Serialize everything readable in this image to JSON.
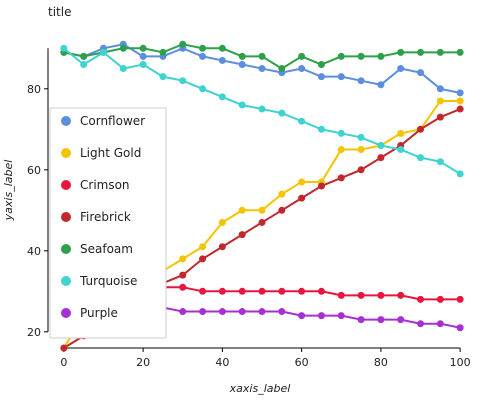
{
  "chart_data": {
    "type": "line",
    "title": "title",
    "xlabel": "xaxis_label",
    "ylabel": "yaxis_label",
    "xlim": [
      -4,
      104
    ],
    "ylim": [
      16,
      96
    ],
    "x_ticks": [
      0,
      20,
      40,
      60,
      80,
      100
    ],
    "y_ticks": [
      20,
      40,
      60,
      80
    ],
    "grid": false,
    "legend_position": "left",
    "x": [
      0,
      5,
      10,
      15,
      20,
      25,
      30,
      35,
      40,
      45,
      50,
      55,
      60,
      65,
      70,
      75,
      80,
      85,
      90,
      95,
      100
    ],
    "series": [
      {
        "name": "Cornflower",
        "color": "#5b8fdd",
        "values": [
          89,
          88,
          90,
          91,
          88,
          88,
          90,
          88,
          87,
          86,
          85,
          84,
          85,
          83,
          83,
          82,
          81,
          85,
          84,
          80,
          79
        ]
      },
      {
        "name": "Light Gold",
        "color": "#f5c400",
        "values": [
          16,
          24,
          26,
          28,
          31,
          35,
          38,
          41,
          47,
          50,
          50,
          54,
          57,
          57,
          65,
          65,
          66,
          69,
          70,
          77,
          77
        ]
      },
      {
        "name": "Crimson",
        "color": "#e8163e",
        "values": [
          31,
          31,
          31,
          31,
          31,
          31,
          31,
          30,
          30,
          30,
          30,
          30,
          30,
          30,
          29,
          29,
          29,
          29,
          28,
          28,
          28
        ]
      },
      {
        "name": "Firebrick",
        "color": "#c1272d",
        "values": [
          16,
          19,
          22,
          26,
          29,
          32,
          34,
          38,
          41,
          44,
          47,
          50,
          53,
          56,
          58,
          60,
          63,
          66,
          70,
          73,
          75
        ]
      },
      {
        "name": "Seafoam",
        "color": "#2ca14a",
        "values": [
          89,
          88,
          89,
          90,
          90,
          89,
          91,
          90,
          90,
          88,
          88,
          85,
          88,
          86,
          88,
          88,
          88,
          89,
          89,
          89,
          89
        ]
      },
      {
        "name": "Turquoise",
        "color": "#3fd3cf",
        "values": [
          90,
          86,
          89,
          85,
          86,
          83,
          82,
          80,
          78,
          76,
          75,
          74,
          72,
          70,
          69,
          68,
          66,
          65,
          63,
          62,
          59
        ]
      },
      {
        "name": "Purple",
        "color": "#a72fd4",
        "values": [
          26,
          26,
          26,
          26,
          26,
          26,
          25,
          25,
          25,
          25,
          25,
          25,
          24,
          24,
          24,
          23,
          23,
          23,
          22,
          22,
          21
        ]
      }
    ]
  }
}
